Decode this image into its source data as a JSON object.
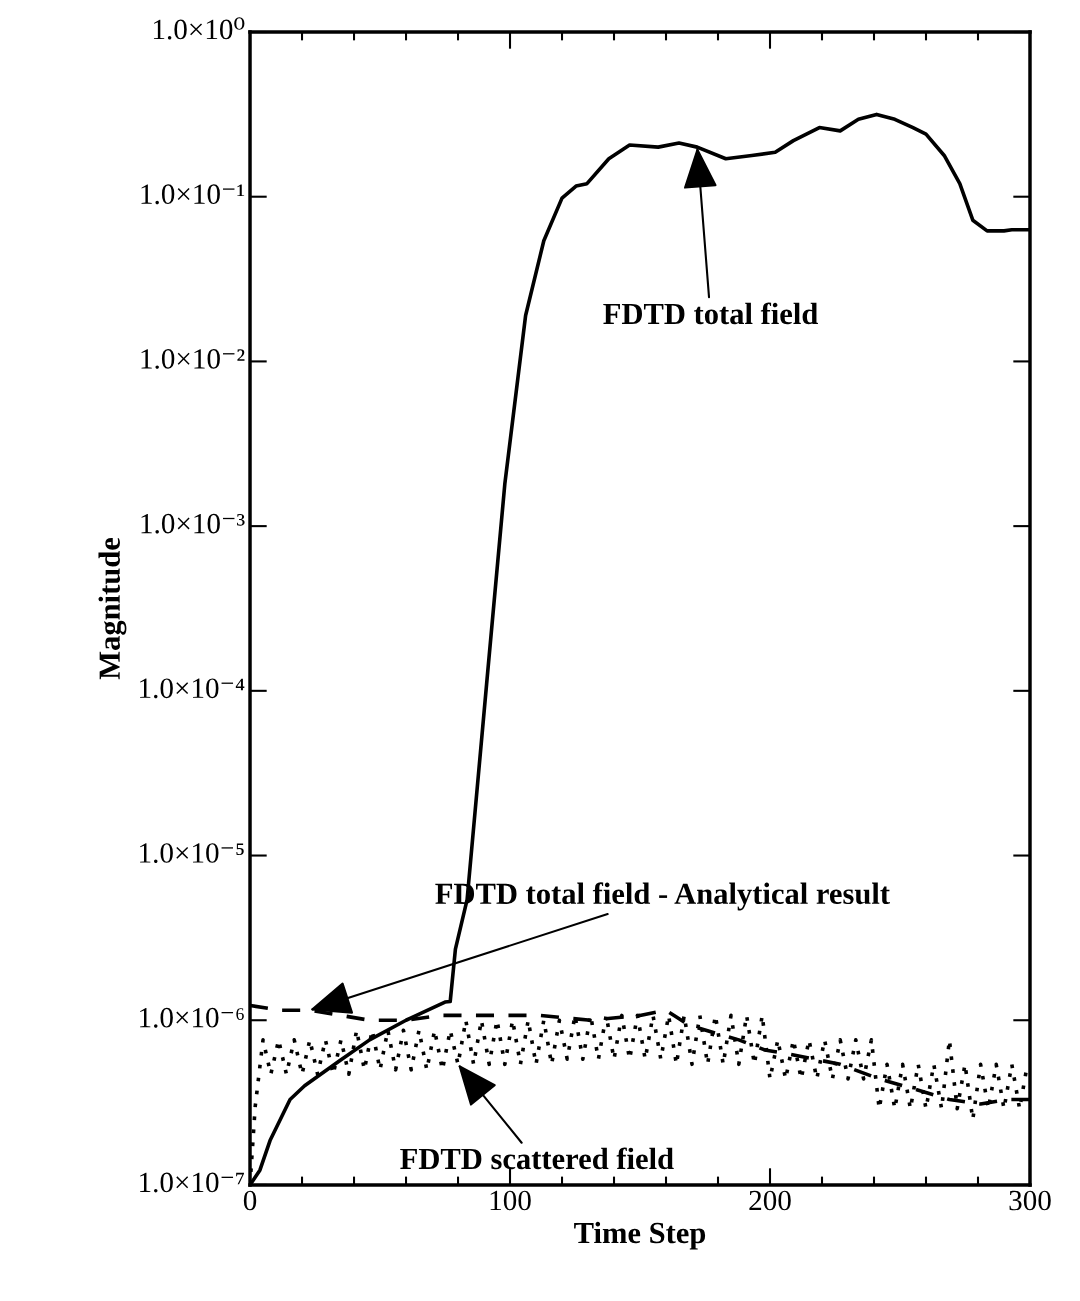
{
  "chart_data": {
    "type": "line",
    "xlabel": "Time Step",
    "ylabel": "Magnitude",
    "log": "y",
    "grid": false,
    "xlim": [
      0,
      300
    ],
    "xticks": [
      0,
      100,
      200,
      300
    ],
    "ylim": [
      1e-07,
      1.0
    ],
    "yticks": [
      {
        "value": 1e-07,
        "label": "1.0×10⁻⁷"
      },
      {
        "value": 1e-06,
        "label": "1.0×10⁻⁶"
      },
      {
        "value": 1e-05,
        "label": "1.0×10⁻⁵"
      },
      {
        "value": 0.0001,
        "label": "1.0×10⁻⁴"
      },
      {
        "value": 0.001,
        "label": "1.0×10⁻³"
      },
      {
        "value": 0.01,
        "label": "1.0×10⁻²"
      },
      {
        "value": 0.1,
        "label": "1.0×10⁻¹"
      },
      {
        "value": 1.0,
        "label": "1.0×10⁰"
      }
    ],
    "series": [
      {
        "color": "#000000",
        "line_style": "solid",
        "x": [
          0,
          3.8,
          7.7,
          15.4,
          21,
          34.6,
          46,
          60,
          75,
          77,
          79,
          83.5,
          91,
          98,
          106,
          113,
          120,
          125.4,
          129.6,
          138,
          146,
          157,
          165,
          172,
          183,
          193,
          202,
          209,
          219,
          227,
          234,
          241,
          248,
          255,
          260,
          267,
          273,
          278,
          283.5,
          290,
          293,
          300
        ],
        "values": [
          1e-07,
          1.23e-07,
          1.86e-07,
          3.3e-07,
          4e-07,
          5.7e-07,
          7.6e-07,
          1e-06,
          1.29e-06,
          1.3e-06,
          2.7e-06,
          5.4e-06,
          0.00011,
          0.0018,
          0.019,
          0.054,
          0.098,
          0.116,
          0.12,
          0.17,
          0.206,
          0.2,
          0.212,
          0.2,
          0.17,
          0.178,
          0.186,
          0.219,
          0.263,
          0.251,
          0.295,
          0.316,
          0.295,
          0.263,
          0.24,
          0.178,
          0.12,
          0.072,
          0.062,
          0.062,
          0.063,
          0.063
        ]
      },
      {
        "color": "#000000",
        "line_style": "dashed",
        "x": [
          0,
          11.5,
          23,
          35,
          46,
          60,
          73,
          92,
          111.5,
          131,
          150,
          160,
          169,
          188,
          198,
          208,
          227,
          242,
          256,
          269,
          281,
          291,
          300
        ],
        "values": [
          1.23e-06,
          1.15e-06,
          1.15e-06,
          1.07e-06,
          1e-06,
          1e-06,
          1.07e-06,
          1.07e-06,
          1.07e-06,
          1e-06,
          1.07e-06,
          1.15e-06,
          9.3e-07,
          7.6e-07,
          6.6e-07,
          6.2e-07,
          5.4e-07,
          4.4e-07,
          3.8e-07,
          3.3e-07,
          3.1e-07,
          3.3e-07,
          3.3e-07
        ]
      },
      {
        "color": "#000000",
        "line_style": "dotted",
        "x": [
          0,
          2,
          5,
          8,
          11,
          14,
          17,
          20,
          23,
          26,
          29,
          32,
          35,
          38,
          41,
          44,
          47,
          50,
          53,
          56,
          59,
          62,
          65,
          68,
          71,
          74,
          77,
          80,
          83,
          86,
          89,
          92,
          95,
          98,
          101,
          104,
          107,
          110,
          113,
          116,
          119,
          122,
          125,
          128,
          131,
          134,
          137,
          140,
          143,
          146,
          149,
          152,
          155,
          158,
          161,
          164,
          167,
          170,
          173,
          176,
          179,
          182,
          185,
          188,
          191,
          194,
          197,
          200,
          203,
          206,
          209,
          212,
          215,
          218,
          221,
          224,
          227,
          230,
          233,
          236,
          239,
          242,
          245,
          248,
          251,
          254,
          257,
          260,
          263,
          266,
          269,
          272,
          275,
          278,
          281,
          284,
          287,
          290,
          293,
          296,
          299
        ],
        "values": [
          1e-07,
          3e-07,
          7.6e-07,
          4.7e-07,
          7.6e-07,
          4.7e-07,
          7.6e-07,
          4.7e-07,
          7.6e-07,
          4.7e-07,
          7.6e-07,
          4.7e-07,
          7.6e-07,
          4.7e-07,
          8.7e-07,
          5e-07,
          8.7e-07,
          5e-07,
          8.7e-07,
          5e-07,
          8.7e-07,
          5e-07,
          8.7e-07,
          5e-07,
          8.7e-07,
          5e-07,
          8.7e-07,
          5.4e-07,
          1e-06,
          5.4e-07,
          1e-06,
          5.4e-07,
          1e-06,
          5.4e-07,
          1e-06,
          5.4e-07,
          1e-06,
          5.4e-07,
          1e-06,
          5.4e-07,
          1e-06,
          5.8e-07,
          1.07e-06,
          5.8e-07,
          1.07e-06,
          5.8e-07,
          1.07e-06,
          5.8e-07,
          1.07e-06,
          5.8e-07,
          1.07e-06,
          5.8e-07,
          1.07e-06,
          5.8e-07,
          1.07e-06,
          5.4e-07,
          1.07e-06,
          5.4e-07,
          1.07e-06,
          5.4e-07,
          1.07e-06,
          5.4e-07,
          1.07e-06,
          5.4e-07,
          1.07e-06,
          5.4e-07,
          1.07e-06,
          4.4e-07,
          7.6e-07,
          4.4e-07,
          7.6e-07,
          4.4e-07,
          7.6e-07,
          4.4e-07,
          7.6e-07,
          4.4e-07,
          7.6e-07,
          4.4e-07,
          7.6e-07,
          4.4e-07,
          7.6e-07,
          2.9e-07,
          5.4e-07,
          2.9e-07,
          5.4e-07,
          2.9e-07,
          5.4e-07,
          2.9e-07,
          5.4e-07,
          2.9e-07,
          7.6e-07,
          2.9e-07,
          5.4e-07,
          2.5e-07,
          5.4e-07,
          2.9e-07,
          5.4e-07,
          2.9e-07,
          5.4e-07,
          2.9e-07,
          5.4e-07
        ]
      }
    ],
    "annotations": [
      {
        "text": "FDTD total field",
        "x": 172,
        "y": 0.2
      },
      {
        "text": "FDTD total field - Analytical result",
        "x": 23,
        "y": 1.15e-06
      },
      {
        "text": "FDTD scattered field",
        "x": 80,
        "y": 5.4e-07
      }
    ]
  }
}
